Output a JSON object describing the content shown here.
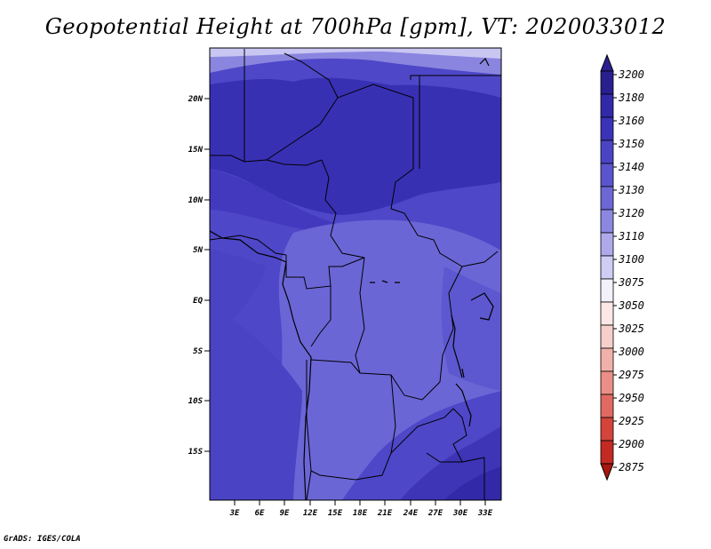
{
  "title": "Geopotential Height at 700hPa [gpm], VT: 2020033012",
  "credit": "GrADS: IGES/COLA",
  "map": {
    "y_ticks": [
      "20N",
      "15N",
      "10N",
      "5N",
      "EQ",
      "5S",
      "10S",
      "15S"
    ],
    "x_ticks": [
      "3E",
      "6E",
      "9E",
      "12E",
      "15E",
      "18E",
      "21E",
      "24E",
      "27E",
      "30E",
      "33E"
    ]
  },
  "colorbar": {
    "levels": [
      "3200",
      "3180",
      "3160",
      "3150",
      "3140",
      "3130",
      "3120",
      "3110",
      "3100",
      "3075",
      "3050",
      "3025",
      "3000",
      "2975",
      "2950",
      "2925",
      "2900",
      "2875"
    ],
    "colors": [
      "#2a1f8f",
      "#3229a8",
      "#3a33b8",
      "#4a44c4",
      "#5a55cc",
      "#6c67d4",
      "#8c88e0",
      "#aeaaea",
      "#cfcdf3",
      "#f3f2fb",
      "#fbe8e6",
      "#f6cfcb",
      "#f0b1ab",
      "#e98f87",
      "#e06a61",
      "#d4443a",
      "#c22a22",
      "#a8160f"
    ]
  }
}
